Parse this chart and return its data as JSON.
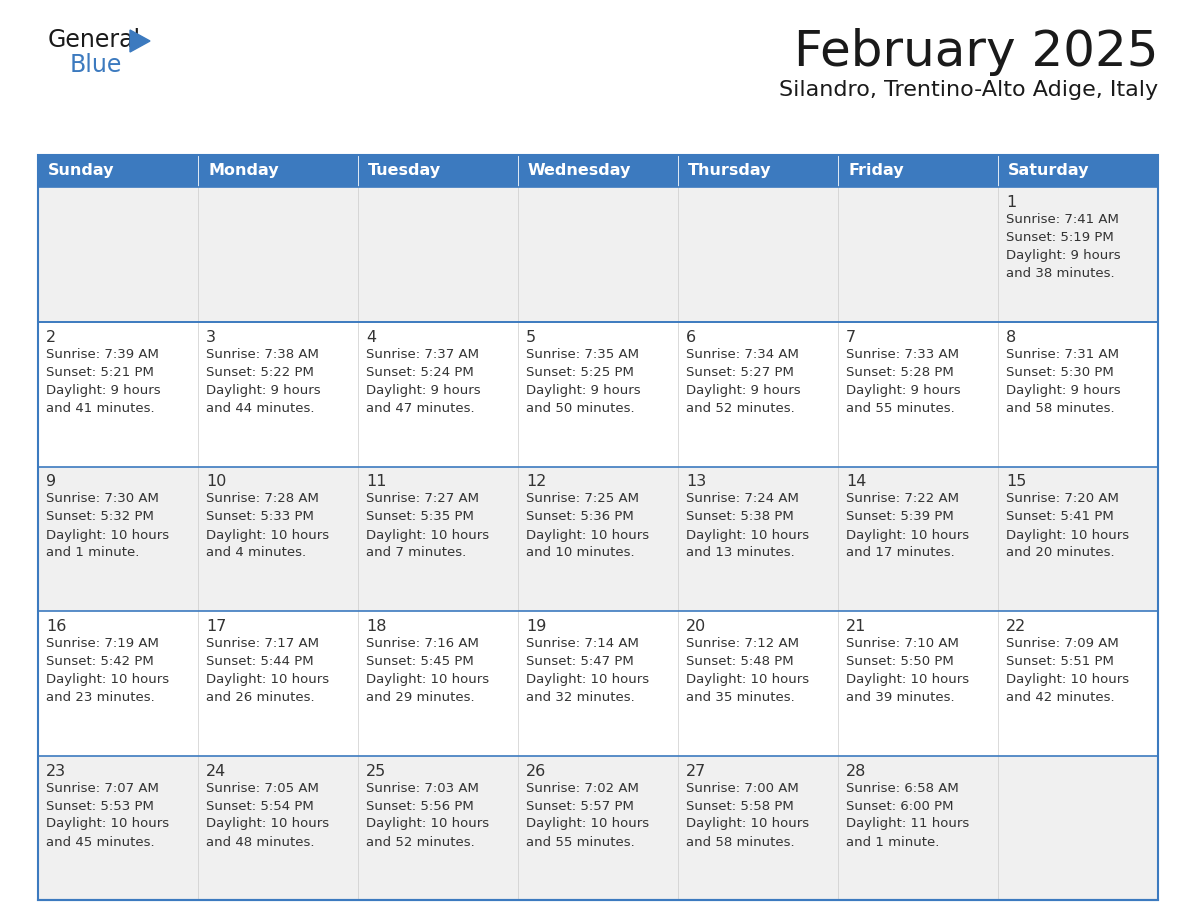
{
  "title": "February 2025",
  "subtitle": "Silandro, Trentino-Alto Adige, Italy",
  "days_of_week": [
    "Sunday",
    "Monday",
    "Tuesday",
    "Wednesday",
    "Thursday",
    "Friday",
    "Saturday"
  ],
  "header_bg": "#3c7abf",
  "header_text": "#ffffff",
  "cell_bg_odd": "#f0f0f0",
  "cell_bg_even": "#ffffff",
  "border_color": "#3c7abf",
  "text_color": "#333333",
  "title_color": "#1a1a1a",
  "logo_dark": "#1a1a1a",
  "logo_blue": "#3c7abf",
  "calendar_data": [
    [
      null,
      null,
      null,
      null,
      null,
      null,
      {
        "day": 1,
        "sunrise": "7:41 AM",
        "sunset": "5:19 PM",
        "daylight": "9 hours\nand 38 minutes."
      }
    ],
    [
      {
        "day": 2,
        "sunrise": "7:39 AM",
        "sunset": "5:21 PM",
        "daylight": "9 hours\nand 41 minutes."
      },
      {
        "day": 3,
        "sunrise": "7:38 AM",
        "sunset": "5:22 PM",
        "daylight": "9 hours\nand 44 minutes."
      },
      {
        "day": 4,
        "sunrise": "7:37 AM",
        "sunset": "5:24 PM",
        "daylight": "9 hours\nand 47 minutes."
      },
      {
        "day": 5,
        "sunrise": "7:35 AM",
        "sunset": "5:25 PM",
        "daylight": "9 hours\nand 50 minutes."
      },
      {
        "day": 6,
        "sunrise": "7:34 AM",
        "sunset": "5:27 PM",
        "daylight": "9 hours\nand 52 minutes."
      },
      {
        "day": 7,
        "sunrise": "7:33 AM",
        "sunset": "5:28 PM",
        "daylight": "9 hours\nand 55 minutes."
      },
      {
        "day": 8,
        "sunrise": "7:31 AM",
        "sunset": "5:30 PM",
        "daylight": "9 hours\nand 58 minutes."
      }
    ],
    [
      {
        "day": 9,
        "sunrise": "7:30 AM",
        "sunset": "5:32 PM",
        "daylight": "10 hours\nand 1 minute."
      },
      {
        "day": 10,
        "sunrise": "7:28 AM",
        "sunset": "5:33 PM",
        "daylight": "10 hours\nand 4 minutes."
      },
      {
        "day": 11,
        "sunrise": "7:27 AM",
        "sunset": "5:35 PM",
        "daylight": "10 hours\nand 7 minutes."
      },
      {
        "day": 12,
        "sunrise": "7:25 AM",
        "sunset": "5:36 PM",
        "daylight": "10 hours\nand 10 minutes."
      },
      {
        "day": 13,
        "sunrise": "7:24 AM",
        "sunset": "5:38 PM",
        "daylight": "10 hours\nand 13 minutes."
      },
      {
        "day": 14,
        "sunrise": "7:22 AM",
        "sunset": "5:39 PM",
        "daylight": "10 hours\nand 17 minutes."
      },
      {
        "day": 15,
        "sunrise": "7:20 AM",
        "sunset": "5:41 PM",
        "daylight": "10 hours\nand 20 minutes."
      }
    ],
    [
      {
        "day": 16,
        "sunrise": "7:19 AM",
        "sunset": "5:42 PM",
        "daylight": "10 hours\nand 23 minutes."
      },
      {
        "day": 17,
        "sunrise": "7:17 AM",
        "sunset": "5:44 PM",
        "daylight": "10 hours\nand 26 minutes."
      },
      {
        "day": 18,
        "sunrise": "7:16 AM",
        "sunset": "5:45 PM",
        "daylight": "10 hours\nand 29 minutes."
      },
      {
        "day": 19,
        "sunrise": "7:14 AM",
        "sunset": "5:47 PM",
        "daylight": "10 hours\nand 32 minutes."
      },
      {
        "day": 20,
        "sunrise": "7:12 AM",
        "sunset": "5:48 PM",
        "daylight": "10 hours\nand 35 minutes."
      },
      {
        "day": 21,
        "sunrise": "7:10 AM",
        "sunset": "5:50 PM",
        "daylight": "10 hours\nand 39 minutes."
      },
      {
        "day": 22,
        "sunrise": "7:09 AM",
        "sunset": "5:51 PM",
        "daylight": "10 hours\nand 42 minutes."
      }
    ],
    [
      {
        "day": 23,
        "sunrise": "7:07 AM",
        "sunset": "5:53 PM",
        "daylight": "10 hours\nand 45 minutes."
      },
      {
        "day": 24,
        "sunrise": "7:05 AM",
        "sunset": "5:54 PM",
        "daylight": "10 hours\nand 48 minutes."
      },
      {
        "day": 25,
        "sunrise": "7:03 AM",
        "sunset": "5:56 PM",
        "daylight": "10 hours\nand 52 minutes."
      },
      {
        "day": 26,
        "sunrise": "7:02 AM",
        "sunset": "5:57 PM",
        "daylight": "10 hours\nand 55 minutes."
      },
      {
        "day": 27,
        "sunrise": "7:00 AM",
        "sunset": "5:58 PM",
        "daylight": "10 hours\nand 58 minutes."
      },
      {
        "day": 28,
        "sunrise": "6:58 AM",
        "sunset": "6:00 PM",
        "daylight": "11 hours\nand 1 minute."
      },
      null
    ]
  ]
}
